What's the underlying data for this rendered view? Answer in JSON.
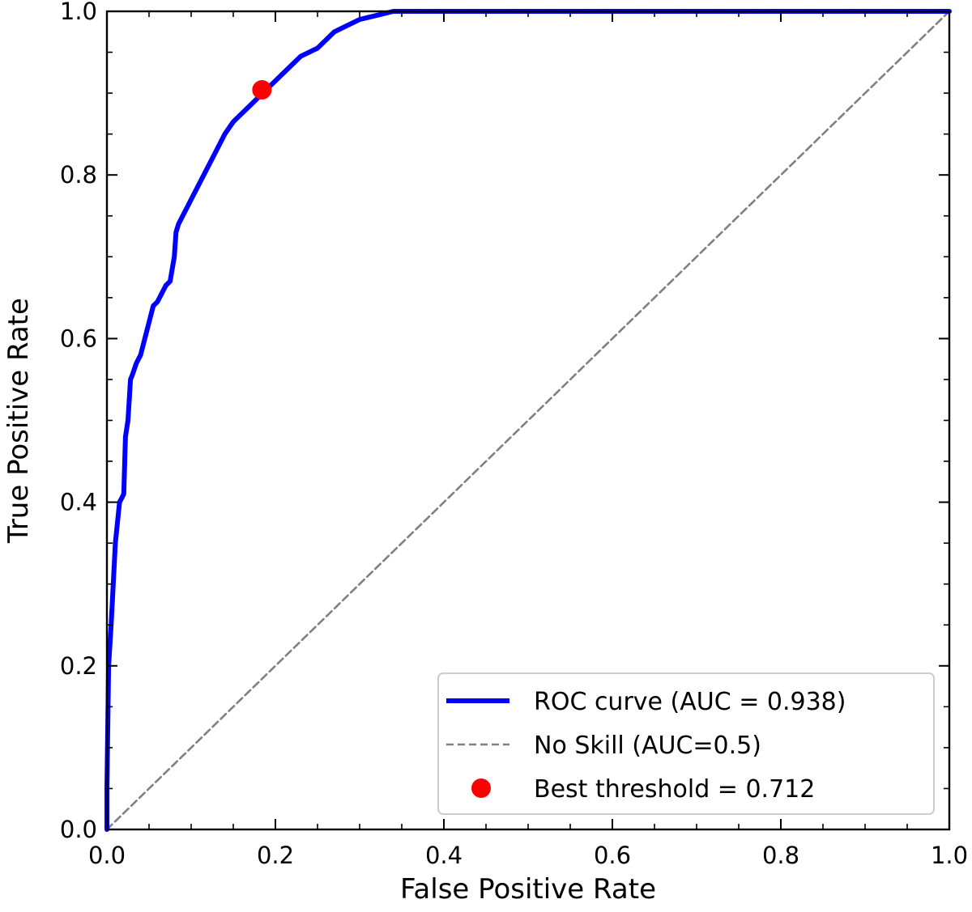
{
  "chart_data": {
    "type": "line",
    "title": "",
    "xlabel": "False Positive Rate",
    "ylabel": "True Positive Rate",
    "xlim": [
      0.0,
      1.0
    ],
    "ylim": [
      0.0,
      1.0
    ],
    "x_ticks": [
      0.0,
      0.2,
      0.4,
      0.6,
      0.8,
      1.0
    ],
    "y_ticks": [
      0.0,
      0.2,
      0.4,
      0.6,
      0.8,
      1.0
    ],
    "x_tick_labels": [
      "0.0",
      "0.2",
      "0.4",
      "0.6",
      "0.8",
      "1.0"
    ],
    "y_tick_labels": [
      "0.0",
      "0.2",
      "0.4",
      "0.6",
      "0.8",
      "1.0"
    ],
    "minor_tick_step": 0.05,
    "ticks_direction": "in",
    "grid": false,
    "legend_position": "lower-right",
    "series": [
      {
        "name": "ROC curve (AUC = 0.938)",
        "kind": "line",
        "color": "#0000ff",
        "x": [
          0.0,
          0.0,
          0.002,
          0.005,
          0.007,
          0.01,
          0.015,
          0.02,
          0.022,
          0.025,
          0.028,
          0.03,
          0.035,
          0.04,
          0.045,
          0.05,
          0.055,
          0.06,
          0.065,
          0.07,
          0.075,
          0.08,
          0.082,
          0.085,
          0.09,
          0.1,
          0.11,
          0.12,
          0.13,
          0.14,
          0.15,
          0.16,
          0.17,
          0.18,
          0.19,
          0.2,
          0.21,
          0.22,
          0.23,
          0.24,
          0.25,
          0.27,
          0.28,
          0.3,
          0.32,
          0.34,
          0.36,
          0.4,
          0.5,
          0.6,
          0.7,
          0.8,
          0.9,
          1.0
        ],
        "y": [
          0.0,
          0.05,
          0.2,
          0.25,
          0.29,
          0.35,
          0.4,
          0.41,
          0.48,
          0.5,
          0.55,
          0.555,
          0.57,
          0.58,
          0.6,
          0.62,
          0.64,
          0.645,
          0.655,
          0.665,
          0.67,
          0.7,
          0.73,
          0.74,
          0.75,
          0.77,
          0.79,
          0.81,
          0.83,
          0.85,
          0.865,
          0.875,
          0.885,
          0.895,
          0.905,
          0.915,
          0.925,
          0.935,
          0.945,
          0.95,
          0.955,
          0.975,
          0.98,
          0.99,
          0.995,
          1.0,
          1.0,
          1.0,
          1.0,
          1.0,
          1.0,
          1.0,
          1.0,
          1.0
        ]
      },
      {
        "name": "No Skill (AUC=0.5)",
        "kind": "dashed-line",
        "color": "#808080",
        "x": [
          0.0,
          1.0
        ],
        "y": [
          0.0,
          1.0
        ]
      },
      {
        "name": "Best threshold = 0.712",
        "kind": "point",
        "color": "#ff0000",
        "x": [
          0.184
        ],
        "y": [
          0.904
        ]
      }
    ]
  }
}
